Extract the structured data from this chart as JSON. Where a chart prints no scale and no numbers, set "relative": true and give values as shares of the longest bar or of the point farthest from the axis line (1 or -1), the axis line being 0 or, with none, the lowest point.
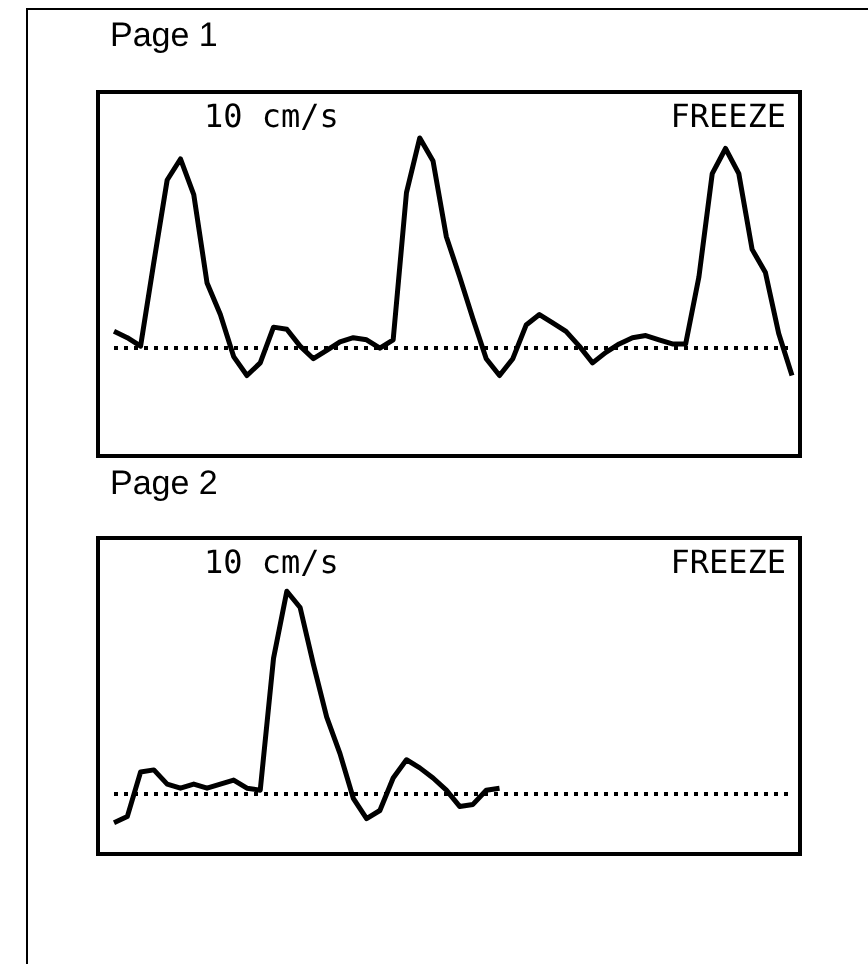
{
  "chart_data": [
    {
      "type": "line",
      "title": "Page 1",
      "relative": true,
      "annotations": [
        "10 cm/s",
        "FREEZE"
      ],
      "ref_lines": [
        {
          "axis": "y",
          "value": 0,
          "line_style": "dotted",
          "color": "#000000"
        }
      ],
      "categories": [
        null,
        null,
        null,
        null,
        null,
        null,
        null,
        null,
        null,
        null,
        null,
        null,
        null,
        null,
        null,
        null,
        null,
        null,
        null,
        null,
        null,
        null,
        null,
        null,
        null,
        null,
        null,
        null,
        null,
        null,
        null,
        null,
        null,
        null,
        null,
        null,
        null,
        null,
        null,
        null,
        null,
        null,
        null,
        null,
        null,
        null,
        null,
        null,
        null,
        null,
        null,
        null
      ],
      "series": [
        {
          "color": "#000000",
          "values": [
            0.08,
            0.05,
            0.01,
            0.41,
            0.8,
            0.9,
            0.73,
            0.31,
            0.16,
            -0.04,
            -0.13,
            -0.07,
            0.1,
            0.09,
            0.01,
            -0.05,
            -0.01,
            0.03,
            0.05,
            0.04,
            0.0,
            0.04,
            0.74,
            1.0,
            0.89,
            0.53,
            0.34,
            0.14,
            -0.05,
            -0.13,
            -0.05,
            0.11,
            0.16,
            0.12,
            0.08,
            0.01,
            -0.07,
            -0.02,
            0.02,
            0.05,
            0.06,
            0.04,
            0.02,
            0.02,
            0.34,
            0.83,
            0.95,
            0.83,
            0.47,
            0.36,
            0.07,
            -0.13
          ]
        }
      ]
    },
    {
      "type": "line",
      "title": "Page 2",
      "relative": true,
      "annotations": [
        "10 cm/s",
        "FREEZE"
      ],
      "ref_lines": [
        {
          "axis": "y",
          "value": 0,
          "line_style": "dotted",
          "color": "#000000"
        }
      ],
      "categories": [
        null,
        null,
        null,
        null,
        null,
        null,
        null,
        null,
        null,
        null,
        null,
        null,
        null,
        null,
        null,
        null,
        null,
        null,
        null,
        null,
        null,
        null,
        null,
        null,
        null,
        null,
        null,
        null,
        null,
        null,
        null,
        null,
        null,
        null,
        null,
        null,
        null,
        null,
        null,
        null,
        null,
        null,
        null,
        null,
        null,
        null,
        null,
        null,
        null,
        null,
        null,
        null
      ],
      "series": [
        {
          "color": "#000000",
          "values": [
            -0.14,
            -0.11,
            0.11,
            0.12,
            0.05,
            0.03,
            0.05,
            0.03,
            0.05,
            0.07,
            0.03,
            0.02,
            0.67,
            1.0,
            0.92,
            0.64,
            0.38,
            0.2,
            -0.02,
            -0.12,
            -0.08,
            0.08,
            0.17,
            0.13,
            0.08,
            0.02,
            -0.06,
            -0.05,
            0.02,
            0.03,
            null,
            null,
            null,
            null,
            null,
            null,
            null,
            null,
            null,
            null,
            null,
            null,
            null,
            null,
            null,
            null,
            null,
            null,
            null,
            null,
            null,
            null
          ]
        }
      ]
    }
  ]
}
